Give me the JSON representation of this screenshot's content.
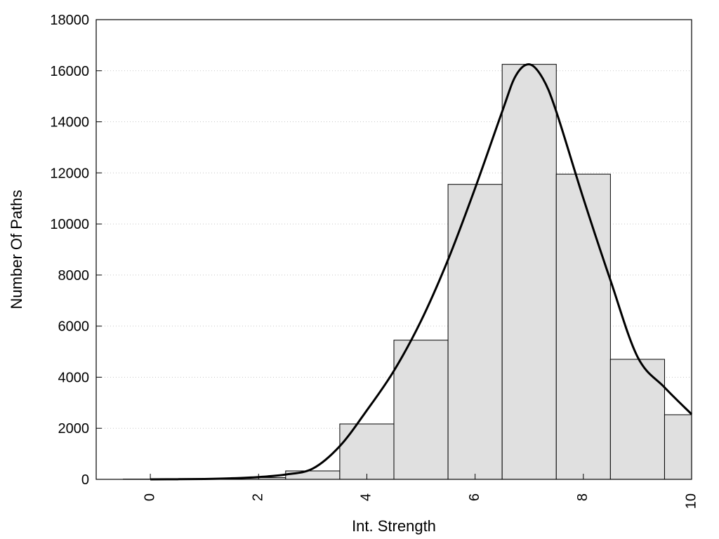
{
  "chart_data": {
    "type": "bar",
    "title": "",
    "xlabel": "Int. Strength",
    "ylabel": "Number Of Paths",
    "xlim": [
      -1,
      10
    ],
    "ylim": [
      0,
      18000
    ],
    "x_ticks": [
      0,
      2,
      4,
      6,
      8,
      10
    ],
    "y_ticks": [
      0,
      2000,
      4000,
      6000,
      8000,
      10000,
      12000,
      14000,
      16000,
      18000
    ],
    "grid": "horizontal dotted",
    "bars": {
      "x": [
        0,
        1,
        2,
        3,
        4,
        5,
        6,
        7,
        8,
        9,
        10
      ],
      "values": [
        10,
        20,
        70,
        330,
        2170,
        5450,
        11550,
        16250,
        11950,
        4700,
        2530
      ],
      "color": "#e0e0e0",
      "edge_color": "#000000"
    },
    "curve": {
      "x": [
        0,
        0.5,
        1,
        1.5,
        2,
        2.5,
        3,
        3.5,
        4,
        4.5,
        5,
        5.5,
        6,
        6.5,
        6.75,
        7,
        7.25,
        7.5,
        8,
        8.5,
        9,
        9.5,
        10
      ],
      "y": [
        0,
        5,
        15,
        40,
        90,
        190,
        420,
        1300,
        2700,
        4250,
        6200,
        8600,
        11400,
        14400,
        15800,
        16250,
        15700,
        14400,
        11000,
        7800,
        4800,
        3600,
        2550
      ],
      "color": "#000000"
    }
  }
}
